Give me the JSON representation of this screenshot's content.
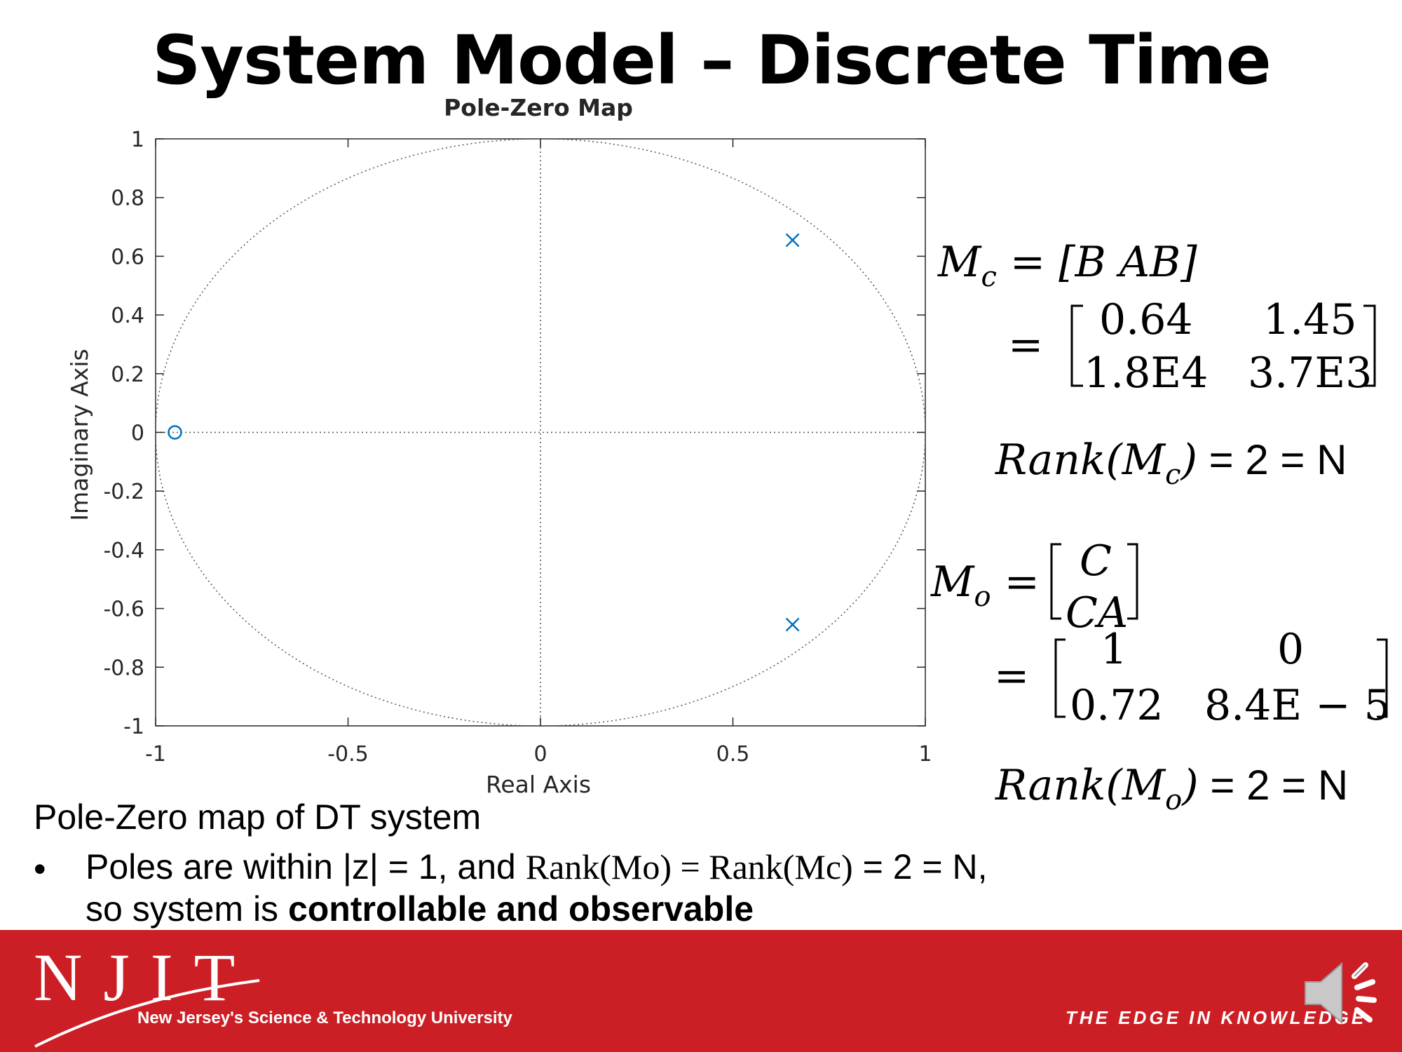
{
  "slide": {
    "title": "System Model – Discrete Time",
    "caption": "Pole-Zero map of DT system",
    "bullet": {
      "part1": "Poles are within |z| = 1, and ",
      "rank_expr": "Rank(Mo) = Rank(Mc)",
      "part2": " = 2 = N,",
      "part3": "so system is ",
      "bold": "controllable and observable"
    }
  },
  "equations": {
    "mc_label": "M",
    "mc_sub": "c",
    "mc_def": "= [B AB]",
    "mc_matrix": {
      "r1c1": "0.64",
      "r1c2": "1.45",
      "r2c1": "1.8E4",
      "r2c2": "3.7E3"
    },
    "rank_mc": {
      "prefix": "Rank(M",
      "sub": "c",
      "suffix": ")",
      "value": " = 2 = N"
    },
    "mo_label": "M",
    "mo_sub": "o",
    "mo_def_top": "C",
    "mo_def_bottom": "CA",
    "mo_matrix": {
      "r1c1": "1",
      "r1c2": "0",
      "r2c1": "0.72",
      "r2c2": "8.4E − 5"
    },
    "rank_mo": {
      "prefix": "Rank(M",
      "sub": "o",
      "suffix": ")",
      "value": " = 2 = N"
    },
    "equals": "="
  },
  "chart_data": {
    "type": "scatter",
    "title": "Pole-Zero Map",
    "xlabel": "Real Axis",
    "ylabel": "Imaginary Axis",
    "xlim": [
      -1,
      1
    ],
    "ylim": [
      -1,
      1
    ],
    "xticks": [
      -1,
      -0.5,
      0,
      0.5,
      1
    ],
    "xtick_labels": [
      "-1",
      "-0.5",
      "0",
      "0.5",
      "1"
    ],
    "yticks": [
      1,
      0.8,
      0.6,
      0.4,
      0.2,
      0,
      -0.2,
      -0.4,
      -0.6,
      -0.8,
      -1
    ],
    "ytick_labels": [
      "1",
      "0.8",
      "0.6",
      "0.4",
      "0.2",
      "0",
      "-0.2",
      "-0.4",
      "-0.6",
      "-0.8",
      "-1"
    ],
    "unit_circle": true,
    "grid": false,
    "poles": [
      {
        "re": 0.655,
        "im": 0.655
      },
      {
        "re": 0.655,
        "im": -0.655
      }
    ],
    "zeros": [
      {
        "re": -0.95,
        "im": 0
      }
    ],
    "marker_color": "#0072bd"
  },
  "footer": {
    "logo": "NJIT",
    "logo_sub": "New Jersey's Science & Technology University",
    "tagline": "THE EDGE IN KNOWLEDGE",
    "bg_color": "#cc1f25"
  },
  "icons": {
    "speaker": "speaker-icon"
  }
}
